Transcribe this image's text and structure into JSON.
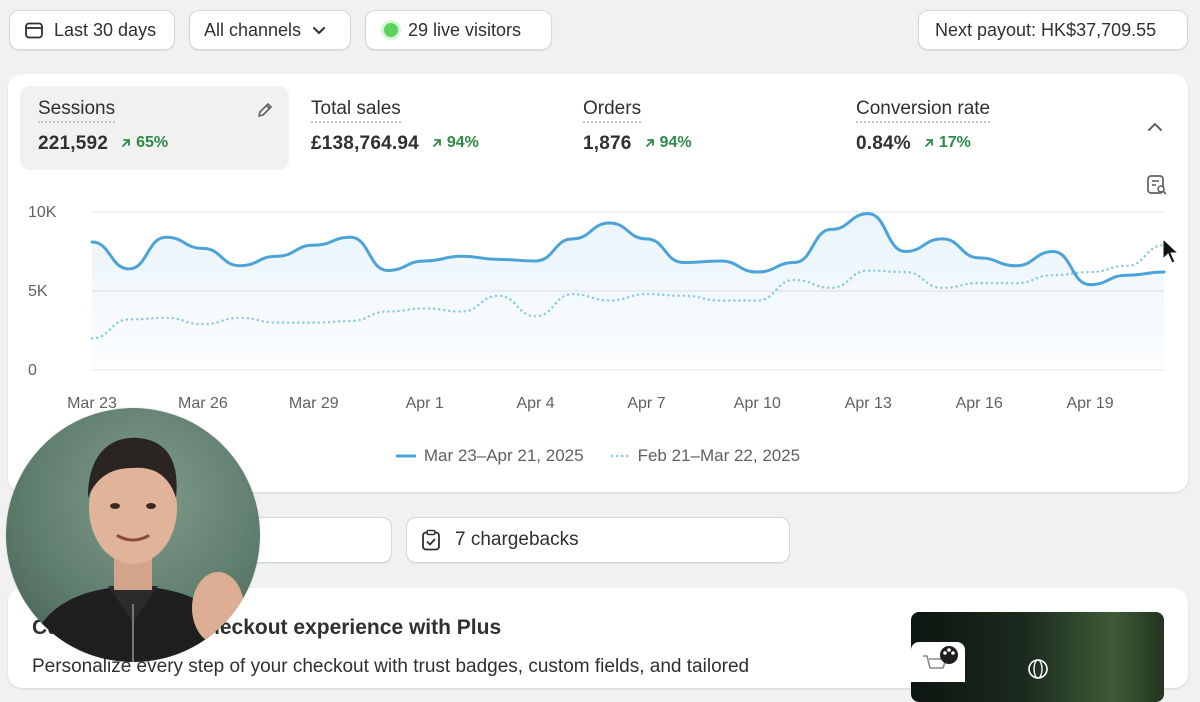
{
  "filters": {
    "date_range": "Last 30 days",
    "channels": "All channels",
    "live_visitors": "29 live visitors",
    "payout": "Next payout: HK$37,709.55"
  },
  "metrics": [
    {
      "title": "Sessions",
      "value": "221,592",
      "change": "65%"
    },
    {
      "title": "Total sales",
      "value": "£138,764.94",
      "change": "94%"
    },
    {
      "title": "Orders",
      "value": "1,876",
      "change": "94%"
    },
    {
      "title": "Conversion rate",
      "value": "0.84%",
      "change": "17%"
    }
  ],
  "chart_data": {
    "type": "line",
    "y_ticks": [
      "10K",
      "5K",
      "0"
    ],
    "ylim": [
      0,
      10000
    ],
    "x_ticks": [
      "Mar 23",
      "Mar 26",
      "Mar 29",
      "Apr 1",
      "Apr 4",
      "Apr 7",
      "Apr 10",
      "Apr 13",
      "Apr 16",
      "Apr 19"
    ],
    "x": [
      "Mar 23",
      "Mar 24",
      "Mar 25",
      "Mar 26",
      "Mar 27",
      "Mar 28",
      "Mar 29",
      "Mar 30",
      "Mar 31",
      "Apr 1",
      "Apr 2",
      "Apr 3",
      "Apr 4",
      "Apr 5",
      "Apr 6",
      "Apr 7",
      "Apr 8",
      "Apr 9",
      "Apr 10",
      "Apr 11",
      "Apr 12",
      "Apr 13",
      "Apr 14",
      "Apr 15",
      "Apr 16",
      "Apr 17",
      "Apr 18",
      "Apr 19",
      "Apr 20",
      "Apr 21"
    ],
    "series": [
      {
        "name": "Mar 23–Apr 21, 2025",
        "style": "solid",
        "color": "#4ba3d8",
        "values": [
          8100,
          6400,
          8400,
          7700,
          6600,
          7200,
          7900,
          8400,
          6300,
          6900,
          7200,
          7000,
          6900,
          8300,
          9300,
          8300,
          6800,
          6900,
          6200,
          6800,
          8900,
          9900,
          7500,
          8300,
          7100,
          6600,
          7500,
          5400,
          6000,
          6200
        ]
      },
      {
        "name": "Feb 21–Mar 22, 2025",
        "style": "dotted",
        "color": "#8ccbe0",
        "values": [
          2000,
          3200,
          3300,
          2900,
          3300,
          3000,
          3000,
          3100,
          3700,
          3900,
          3700,
          4700,
          3400,
          4800,
          4400,
          4800,
          4700,
          4400,
          4400,
          5700,
          5200,
          6300,
          6200,
          5200,
          5500,
          5500,
          6000,
          6200,
          6600,
          7900
        ]
      }
    ]
  },
  "buttons": {
    "chargebacks": "7 chargebacks"
  },
  "promo": {
    "title": "Customize your checkout experience with Plus",
    "body": "Personalize every step of your checkout with trust badges, custom fields, and tailored"
  },
  "colors": {
    "accent_line": "#4ba3d8",
    "positive_change": "#2e8b46",
    "live_dot": "#5bd35b"
  }
}
